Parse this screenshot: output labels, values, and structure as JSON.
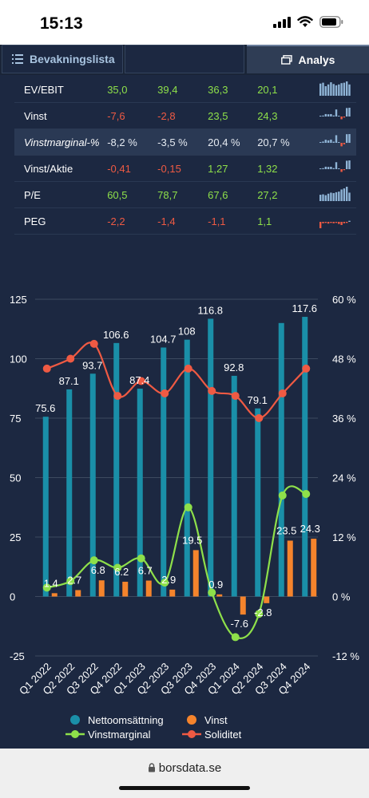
{
  "status": {
    "time": "15:13"
  },
  "tabs": {
    "watchlist": "Bevakningslista",
    "analysis": "Analys"
  },
  "metrics": [
    {
      "label": "EV/EBIT",
      "values": [
        "35,0",
        "39,4",
        "36,3",
        "20,1"
      ],
      "signs": [
        "pos",
        "pos",
        "pos",
        "pos"
      ],
      "spark": [
        28,
        30,
        22,
        26,
        31,
        27,
        24,
        26,
        29,
        30,
        33,
        26
      ]
    },
    {
      "label": "Vinst",
      "values": [
        "-7,6",
        "-2,8",
        "23,5",
        "24,3"
      ],
      "signs": [
        "neg",
        "neg",
        "pos",
        "pos"
      ],
      "spark": [
        1.4,
        2.7,
        6.8,
        6.2,
        6.7,
        2.9,
        19.5,
        0.9,
        -7.6,
        -2.8,
        23.5,
        24.3
      ]
    },
    {
      "label": "Vinstmarginal-%",
      "values": [
        "-8,2 %",
        "-3,5 %",
        "20,4 %",
        "20,7 %"
      ],
      "signs": [
        "neu",
        "neu",
        "neu",
        "neu"
      ],
      "highlight": true,
      "spark": [
        1.8,
        3.1,
        7.3,
        5.8,
        7.7,
        2.8,
        18,
        0.8,
        -8.2,
        -3.5,
        20.4,
        20.7
      ]
    },
    {
      "label": "Vinst/Aktie",
      "values": [
        "-0,41",
        "-0,15",
        "1,27",
        "1,32"
      ],
      "signs": [
        "neg",
        "neg",
        "pos",
        "pos"
      ],
      "spark": [
        0.08,
        0.15,
        0.37,
        0.34,
        0.36,
        0.16,
        1.05,
        0.05,
        -0.41,
        -0.15,
        1.27,
        1.32
      ]
    },
    {
      "label": "P/E",
      "values": [
        "60,5",
        "78,7",
        "67,6",
        "27,2"
      ],
      "signs": [
        "pos",
        "pos",
        "pos",
        "pos"
      ],
      "spark": [
        30,
        32,
        28,
        35,
        40,
        38,
        42,
        45,
        55,
        60,
        68,
        40
      ]
    },
    {
      "label": "PEG",
      "values": [
        "-2,2",
        "-1,4",
        "-1,1",
        "1,1"
      ],
      "signs": [
        "neg",
        "neg",
        "neg",
        "pos"
      ],
      "spark": [
        -2.5,
        -0.4,
        -0.3,
        -0.5,
        -0.3,
        -0.4,
        -0.3,
        -0.6,
        -0.9,
        -0.4,
        -0.3,
        0.3
      ]
    }
  ],
  "chart_data": {
    "type": "bar",
    "categories": [
      "Q1 2022",
      "Q2 2022",
      "Q3 2022",
      "Q4 2022",
      "Q1 2023",
      "Q2 2023",
      "Q3 2023",
      "Q4 2023",
      "Q1 2024",
      "Q2 2024",
      "Q3 2024",
      "Q4 2024"
    ],
    "left_axis": {
      "ticks": [
        "125",
        "100",
        "75",
        "50",
        "25",
        "0",
        "-25"
      ],
      "range": [
        -25,
        125
      ]
    },
    "right_axis": {
      "ticks": [
        "60 %",
        "48 %",
        "36 %",
        "24 %",
        "12 %",
        "0 %",
        "-12 %"
      ],
      "range": [
        -12,
        60
      ]
    },
    "series": [
      {
        "name": "Nettoomsättning",
        "type": "bar",
        "color": "#1a8fa8",
        "values": [
          75.6,
          87.1,
          93.7,
          106.6,
          87.4,
          104.7,
          108,
          116.8,
          92.8,
          79.1,
          115,
          117.6
        ],
        "labels": [
          "75.6",
          "87.1",
          "93.7",
          "106.6",
          "87.4",
          "104.7",
          "108",
          "116.8",
          "92.8",
          "79.1",
          "",
          "117.6"
        ]
      },
      {
        "name": "Vinst",
        "type": "bar",
        "color": "#f5842c",
        "values": [
          1.4,
          2.7,
          6.8,
          6.2,
          6.7,
          2.9,
          19.5,
          0.9,
          -7.6,
          -2.8,
          23.5,
          24.3
        ],
        "labels": [
          "1.4",
          "2.7",
          "6.8",
          "6.2",
          "6.7",
          "2.9",
          "19.5",
          "0.9",
          "-7.6",
          "-2.8",
          "23.5",
          "24.3"
        ]
      },
      {
        "name": "Vinstmarginal",
        "type": "line",
        "axis": "right",
        "color": "#8ee04a",
        "values": [
          1.8,
          3.1,
          7.3,
          5.8,
          7.7,
          2.8,
          18,
          0.8,
          -8.2,
          -3.5,
          20.4,
          20.7
        ]
      },
      {
        "name": "Soliditet",
        "type": "line",
        "axis": "right",
        "color": "#ef5a43",
        "values": [
          46,
          48,
          51,
          40.5,
          43.5,
          41,
          46,
          41.5,
          40.5,
          36,
          41,
          46
        ]
      }
    ]
  },
  "legend": [
    {
      "label": "Nettoomsättning",
      "color": "#1a8fa8",
      "kind": "dot"
    },
    {
      "label": "Vinst",
      "color": "#f5842c",
      "kind": "dot"
    },
    {
      "label": "Vinstmarginal",
      "color": "#8ee04a",
      "kind": "line"
    },
    {
      "label": "Soliditet",
      "color": "#ef5a43",
      "kind": "line"
    }
  ],
  "browser": {
    "url": "borsdata.se"
  }
}
